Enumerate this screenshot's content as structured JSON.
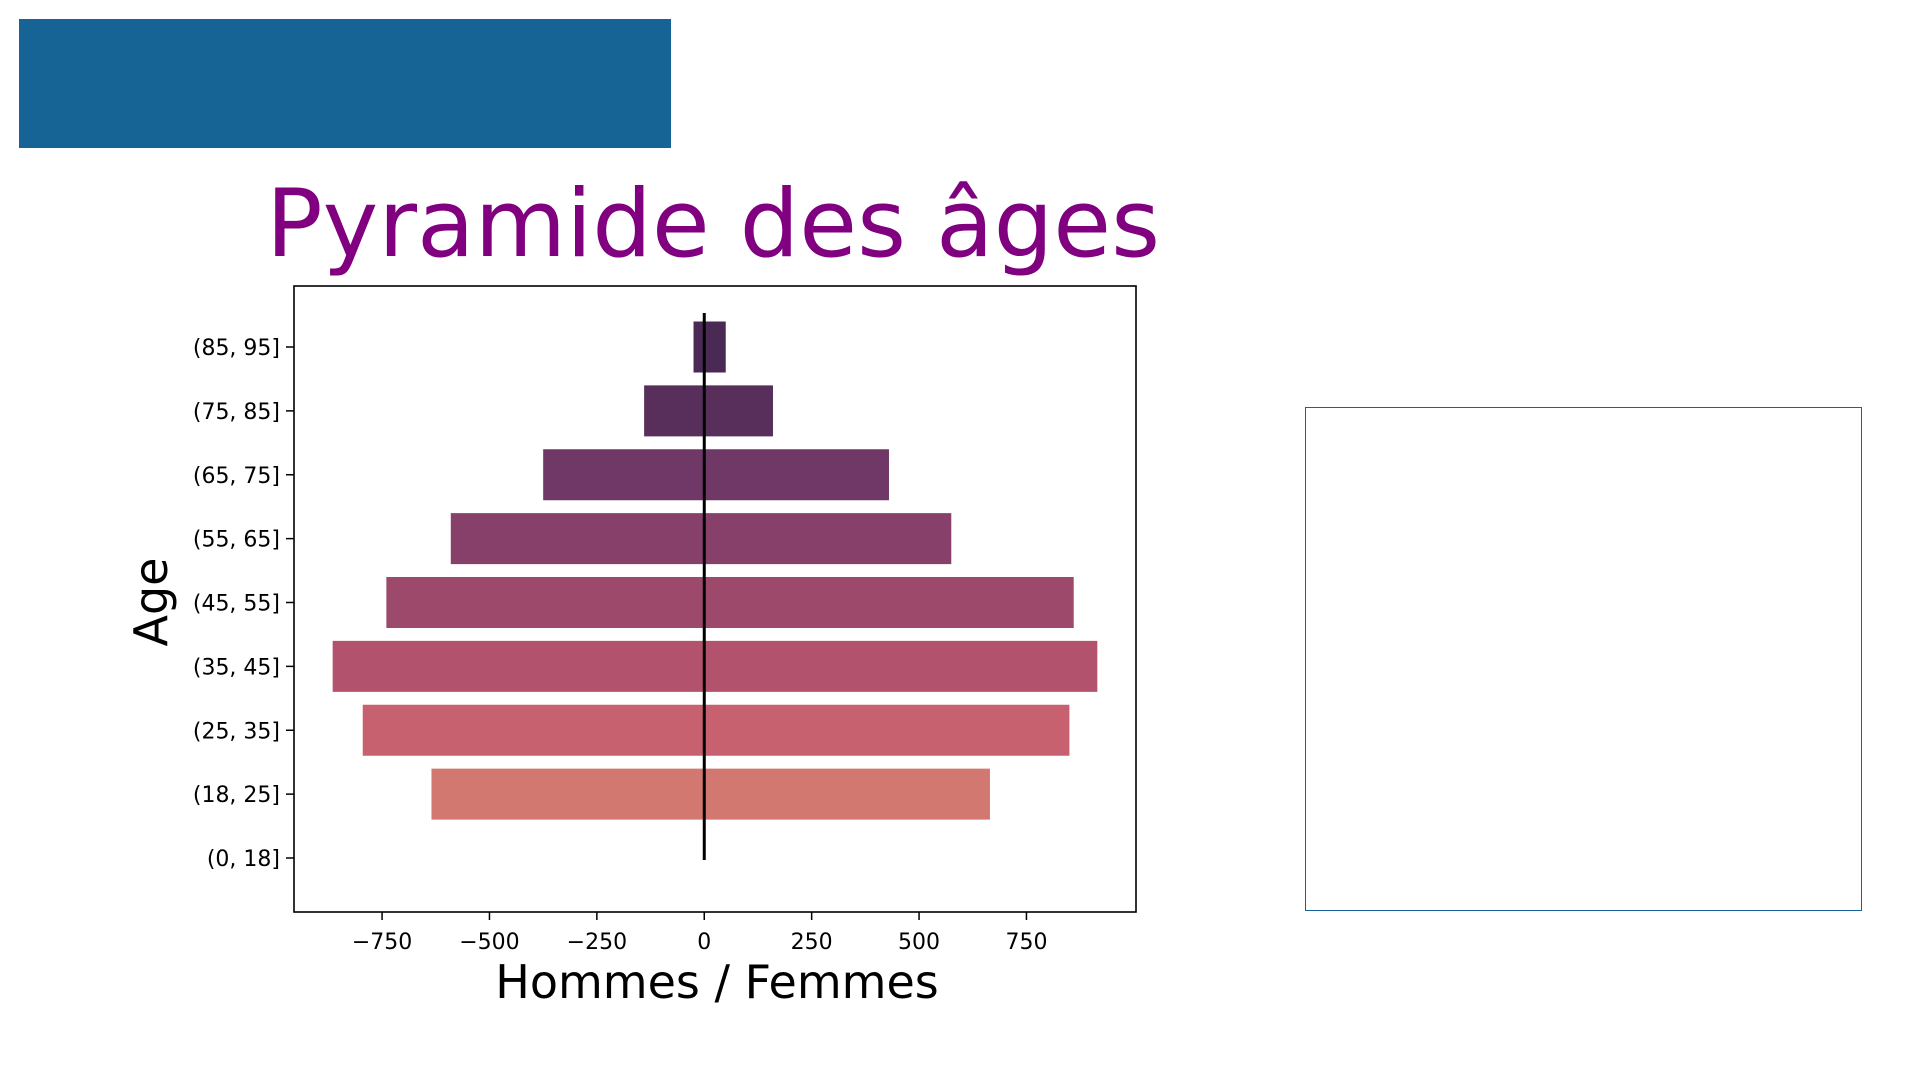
{
  "colors": {
    "banner": "#166395",
    "title": "#800080",
    "panel_border": "#166395",
    "axis": "#000000",
    "bars": [
      "#d88b75",
      "#d27870",
      "#c76170",
      "#b3526c",
      "#9c496b",
      "#86406a",
      "#703867",
      "#582f5b",
      "#4a2a55"
    ]
  },
  "chart_data": {
    "type": "bar",
    "orientation": "horizontal",
    "title": "Pyramide des âges",
    "xlabel": "Hommes / Femmes",
    "ylabel": "Age",
    "categories": [
      "(0, 18]",
      "(18, 25]",
      "(25, 35]",
      "(35, 45]",
      "(45, 55]",
      "(55, 65]",
      "(65, 75]",
      "(75, 85]",
      "(85, 95]"
    ],
    "series": [
      {
        "values": [
          0,
          -635,
          -795,
          -865,
          -740,
          -590,
          -375,
          -140,
          -25
        ]
      },
      {
        "values": [
          0,
          665,
          850,
          915,
          860,
          575,
          430,
          160,
          50
        ]
      }
    ],
    "xlim": [
      -955,
      1005
    ],
    "xticks": [
      -750,
      -500,
      -250,
      0,
      250,
      500,
      750
    ],
    "xtick_labels": [
      "−750",
      "−500",
      "−250",
      "0",
      "250",
      "500",
      "750"
    ],
    "grid": false,
    "legend": "none",
    "zero_line": true
  }
}
